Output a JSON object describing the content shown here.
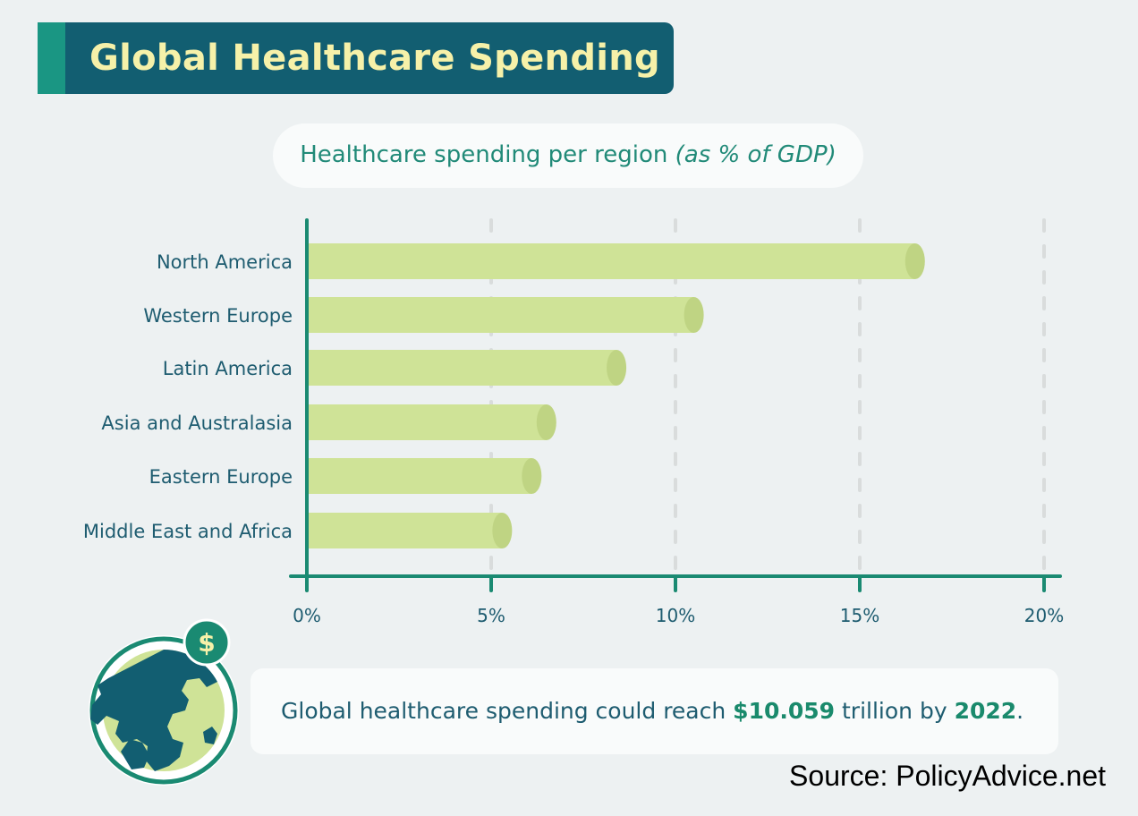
{
  "header": {
    "title": "Global Healthcare Spending"
  },
  "chart_data": {
    "type": "bar",
    "orientation": "horizontal",
    "title": "Healthcare spending per region",
    "title_unit": "(as % of GDP)",
    "categories": [
      "North America",
      "Western Europe",
      "Latin America",
      "Asia and Australasia",
      "Eastern Europe",
      "Middle East and Africa"
    ],
    "values": [
      16.5,
      10.5,
      8.4,
      6.5,
      6.1,
      5.3
    ],
    "xlim": [
      0,
      20
    ],
    "xticks": [
      0,
      5,
      10,
      15,
      20
    ],
    "xtick_labels": [
      "0%",
      "5%",
      "10%",
      "15%",
      "20%"
    ],
    "grid": "vertical dashed",
    "colors": {
      "bar": "#cfe397",
      "bar_cap": "#bfd483",
      "axis": "#1a8a72",
      "grid": "#d9dcdc"
    }
  },
  "callout": {
    "text_before": "Global healthcare spending could reach ",
    "amount": "$10.059",
    "text_middle": " trillion by ",
    "year": "2022",
    "text_after": "."
  },
  "badge": {
    "symbol": "$"
  },
  "source": "Source: PolicyAdvice.net"
}
